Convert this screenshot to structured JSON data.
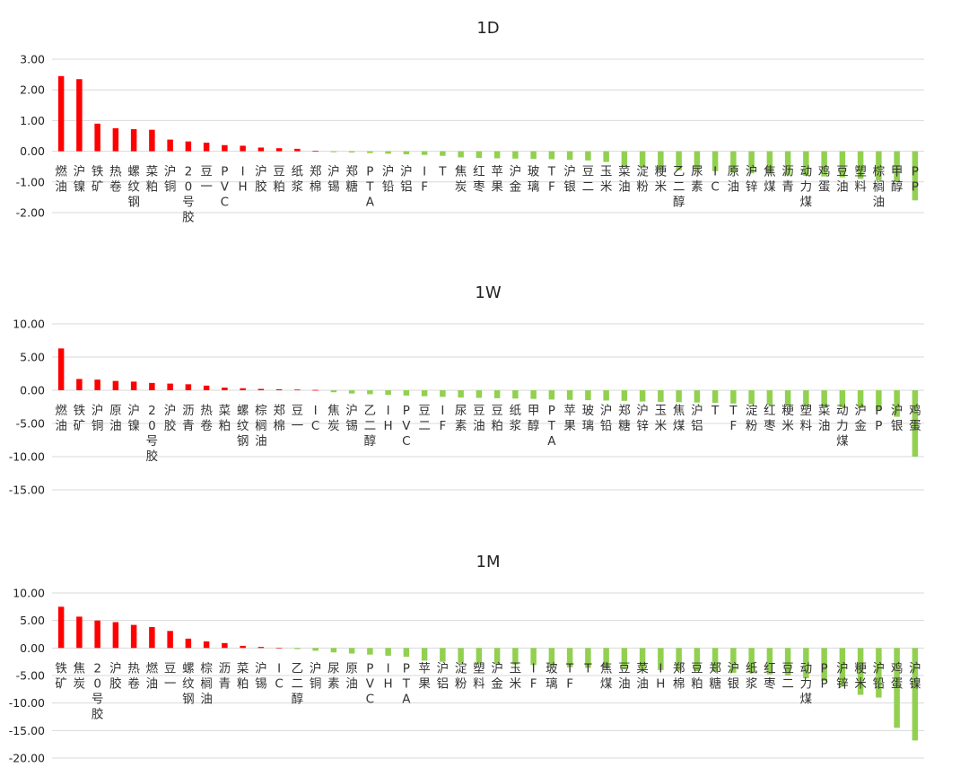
{
  "colors": {
    "positive": "#ff0000",
    "negative": "#92d050",
    "grid": "#d9d9d9",
    "text": "#222222"
  },
  "chart_data": [
    {
      "type": "bar",
      "title": "1D",
      "ylim": [
        -2,
        3
      ],
      "yticks": [
        "3.00",
        "2.00",
        "1.00",
        "0.00",
        "-1.00",
        "-2.00"
      ],
      "categories": [
        "燃油",
        "沪镍",
        "铁矿",
        "热卷",
        "螺纹钢",
        "菜粕",
        "沪铜",
        "20号胶",
        "豆一",
        "PVC",
        "IH",
        "沪胶",
        "豆粕",
        "纸浆",
        "郑棉",
        "沪锡",
        "郑糖",
        "PTA",
        "沪铅",
        "沪铝",
        "IF",
        "T",
        "焦炭",
        "红枣",
        "苹果",
        "沪金",
        "玻璃",
        "TF",
        "沪银",
        "豆二",
        "玉米",
        "菜油",
        "淀粉",
        "粳米",
        "乙二醇",
        "尿素",
        "IC",
        "原油",
        "沪锌",
        "焦煤",
        "沥青",
        "动力煤",
        "鸡蛋",
        "豆油",
        "塑料",
        "棕榈油",
        "甲醇",
        "PP"
      ],
      "values": [
        2.45,
        2.35,
        0.9,
        0.75,
        0.72,
        0.7,
        0.38,
        0.32,
        0.28,
        0.2,
        0.18,
        0.12,
        0.1,
        0.08,
        0.01,
        -0.03,
        -0.04,
        -0.06,
        -0.08,
        -0.1,
        -0.12,
        -0.15,
        -0.2,
        -0.22,
        -0.23,
        -0.24,
        -0.25,
        -0.26,
        -0.28,
        -0.3,
        -0.35,
        -0.5,
        -0.52,
        -0.6,
        -0.62,
        -0.63,
        -0.65,
        -0.7,
        -0.72,
        -0.75,
        -0.78,
        -0.8,
        -0.82,
        -0.85,
        -0.9,
        -0.95,
        -1.0,
        -1.6
      ]
    },
    {
      "type": "bar",
      "title": "1W",
      "ylim": [
        -15,
        10
      ],
      "yticks": [
        "10.00",
        "5.00",
        "0.00",
        "-5.00",
        "-10.00",
        "-15.00"
      ],
      "categories": [
        "燃油",
        "铁矿",
        "沪铜",
        "原油",
        "沪镍",
        "20号胶",
        "沪胶",
        "沥青",
        "热卷",
        "菜粕",
        "螺纹钢",
        "棕榈油",
        "郑棉",
        "豆一",
        "IC",
        "焦炭",
        "沪锡",
        "乙二醇",
        "IH",
        "PVC",
        "豆二",
        "IF",
        "尿素",
        "豆油",
        "豆粕",
        "纸浆",
        "甲醇",
        "PTA",
        "苹果",
        "玻璃",
        "沪铅",
        "郑糖",
        "沪锌",
        "玉米",
        "焦煤",
        "沪铝",
        "T",
        "TF",
        "淀粉",
        "红枣",
        "粳米",
        "塑料",
        "菜油",
        "动力煤",
        "沪金",
        "PP",
        "沪银",
        "鸡蛋"
      ],
      "values": [
        6.3,
        1.7,
        1.6,
        1.4,
        1.3,
        1.1,
        1.0,
        0.9,
        0.7,
        0.4,
        0.3,
        0.2,
        0.15,
        0.1,
        0.05,
        -0.3,
        -0.5,
        -0.6,
        -0.7,
        -0.8,
        -0.9,
        -1.0,
        -1.1,
        -1.15,
        -1.2,
        -1.25,
        -1.3,
        -1.4,
        -1.45,
        -1.5,
        -1.55,
        -1.6,
        -1.7,
        -1.75,
        -1.8,
        -1.85,
        -1.9,
        -2.0,
        -2.1,
        -2.2,
        -2.3,
        -2.4,
        -2.5,
        -2.6,
        -2.7,
        -3.0,
        -4.0,
        -10.0
      ]
    },
    {
      "type": "bar",
      "title": "1M",
      "ylim": [
        -20,
        10
      ],
      "yticks": [
        "10.00",
        "5.00",
        "0.00",
        "-5.00",
        "-10.00",
        "-15.00",
        "-20.00"
      ],
      "categories": [
        "铁矿",
        "焦炭",
        "20号胶",
        "沪胶",
        "热卷",
        "燃油",
        "豆一",
        "螺纹钢",
        "棕榈油",
        "沥青",
        "菜粕",
        "沪锡",
        "IC",
        "乙二醇",
        "沪铜",
        "尿素",
        "原油",
        "PVC",
        "IH",
        "PTA",
        "苹果",
        "沪铝",
        "淀粉",
        "塑料",
        "沪金",
        "玉米",
        "IF",
        "玻璃",
        "TF",
        "T",
        "焦煤",
        "豆油",
        "菜油",
        "IH",
        "郑棉",
        "豆粕",
        "郑糖",
        "沪银",
        "纸浆",
        "红枣",
        "豆二",
        "动力煤",
        "PP",
        "沪锌",
        "粳米",
        "沪铅",
        "鸡蛋",
        "沪镍"
      ],
      "values": [
        7.5,
        5.7,
        5.0,
        4.7,
        4.2,
        3.8,
        3.1,
        1.7,
        1.2,
        0.9,
        0.4,
        0.2,
        0.0,
        -0.2,
        -0.5,
        -0.8,
        -1.0,
        -1.2,
        -1.4,
        -1.6,
        -2.3,
        -2.5,
        -2.7,
        -2.8,
        -2.9,
        -3.0,
        -3.1,
        -3.3,
        -3.5,
        -3.6,
        -3.7,
        -3.8,
        -3.9,
        -4.0,
        -4.1,
        -4.2,
        -4.3,
        -4.5,
        -4.6,
        -4.8,
        -5.0,
        -5.5,
        -6.0,
        -7.0,
        -8.5,
        -9.0,
        -14.5,
        -16.8
      ]
    }
  ]
}
